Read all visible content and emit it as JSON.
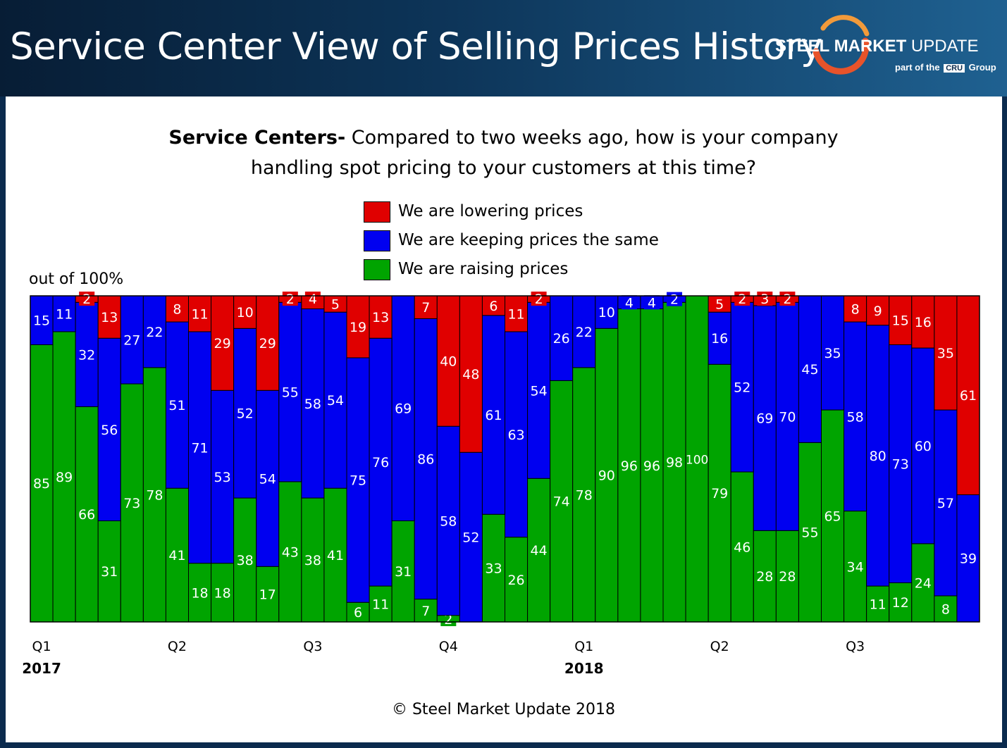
{
  "header": {
    "title": "Service Center View of Selling Prices History",
    "brand_bold": "STEEL MARKET",
    "brand_light": " UPDATE",
    "brand_sub_pre": "part of the",
    "brand_cru": "CRU",
    "brand_sub_post": "Group"
  },
  "chart_data": {
    "type": "bar",
    "stacked": true,
    "title_bold": "Service Centers-",
    "title_line1": " Compared to two weeks ago, how is your company",
    "title_line2": "handling spot pricing to your customers at this time?",
    "ylabel": "out of 100%",
    "ylim": [
      0,
      100
    ],
    "series": [
      {
        "name": "We are raising prices",
        "color": "#00a400",
        "values": [
          85,
          89,
          66,
          31,
          73,
          78,
          41,
          18,
          18,
          38,
          17,
          43,
          38,
          41,
          6,
          11,
          31,
          7,
          2,
          0,
          33,
          26,
          44,
          74,
          78,
          90,
          96,
          96,
          98,
          100,
          79,
          46,
          28,
          28,
          55,
          65,
          34,
          11,
          12,
          24,
          8,
          0
        ]
      },
      {
        "name": "We are keeping prices the same",
        "color": "#0000f0",
        "values": [
          15,
          11,
          32,
          56,
          27,
          22,
          51,
          71,
          53,
          52,
          54,
          55,
          58,
          54,
          75,
          76,
          69,
          86,
          58,
          52,
          61,
          63,
          54,
          26,
          22,
          10,
          4,
          4,
          2,
          0,
          16,
          52,
          69,
          70,
          45,
          35,
          58,
          80,
          73,
          60,
          57,
          39
        ]
      },
      {
        "name": "We are lowering prices",
        "color": "#e00000",
        "values": [
          0,
          0,
          2,
          13,
          0,
          0,
          8,
          11,
          29,
          10,
          29,
          2,
          4,
          5,
          19,
          13,
          0,
          7,
          40,
          48,
          6,
          11,
          2,
          0,
          0,
          0,
          0,
          0,
          0,
          0,
          5,
          2,
          3,
          2,
          0,
          0,
          8,
          9,
          15,
          16,
          35,
          61
        ]
      }
    ],
    "x_ticks": [
      {
        "bar": 0,
        "label": "Q1",
        "year": "2017"
      },
      {
        "bar": 6,
        "label": "Q2",
        "year": ""
      },
      {
        "bar": 12,
        "label": "Q3",
        "year": ""
      },
      {
        "bar": 18,
        "label": "Q4",
        "year": ""
      },
      {
        "bar": 24,
        "label": "Q1",
        "year": "2018"
      },
      {
        "bar": 30,
        "label": "Q2",
        "year": ""
      },
      {
        "bar": 36,
        "label": "Q3",
        "year": ""
      }
    ]
  },
  "legend": [
    {
      "label": "We are lowering prices",
      "color": "#e00000"
    },
    {
      "label": "We are keeping prices the same",
      "color": "#0000f0"
    },
    {
      "label": "We are raising prices",
      "color": "#00a400"
    }
  ],
  "footer": {
    "copyright": "© Steel Market Update 2018"
  }
}
